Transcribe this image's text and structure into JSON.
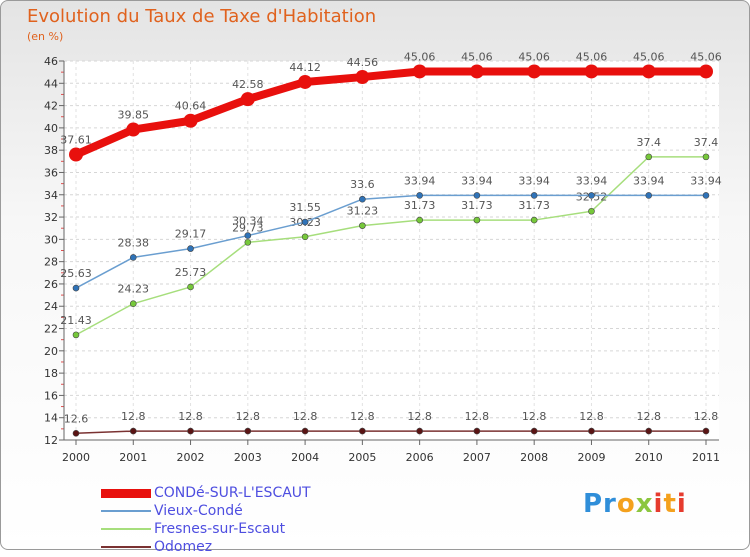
{
  "header": {
    "title": "Evolution du Taux de Taxe d'Habitation",
    "subtitle": "(en %)"
  },
  "logo": {
    "text": "Proxiti",
    "colors": [
      "#2f8ed9",
      "#f4a11d",
      "#8cc63f",
      "#e63b2e"
    ]
  },
  "chart_data": {
    "type": "line",
    "title": "Evolution du Taux de Taxe d'Habitation",
    "ylabel": "(en %)",
    "xlabel": "",
    "x": [
      "2000",
      "2001",
      "2002",
      "2003",
      "2004",
      "2005",
      "2006",
      "2007",
      "2008",
      "2009",
      "2010",
      "2011"
    ],
    "ylim": [
      12,
      46
    ],
    "yticks": [
      12,
      14,
      16,
      18,
      20,
      22,
      24,
      26,
      28,
      30,
      32,
      34,
      36,
      38,
      40,
      42,
      44,
      46
    ],
    "grid": true,
    "legend": "bottom-left",
    "series": [
      {
        "name": "CONDé-SUR-L'ESCAUT",
        "color": "#e8100d",
        "emphasis": true,
        "values": [
          37.61,
          39.85,
          40.64,
          42.58,
          44.12,
          44.56,
          45.06,
          45.06,
          45.06,
          45.06,
          45.06,
          45.06
        ],
        "labels": [
          "37.61",
          "39.85",
          "40.64",
          "42.58",
          "44.12",
          "44.56",
          "45.06",
          "45.06",
          "45.06",
          "45.06",
          "45.06",
          "45.06"
        ]
      },
      {
        "name": "Vieux-Condé",
        "color": "#6a9ed0",
        "point_color": "#2f73b8",
        "values": [
          25.63,
          28.38,
          29.17,
          30.34,
          31.55,
          33.6,
          33.94,
          33.94,
          33.94,
          33.94,
          33.94,
          33.94
        ],
        "labels": [
          "25.63",
          "28.38",
          "29.17",
          "30.34",
          "31.55",
          "33.6",
          "33.94",
          "33.94",
          "33.94",
          "33.94",
          "33.94",
          "33.94"
        ]
      },
      {
        "name": "Fresnes-sur-Escaut",
        "color": "#a6de7c",
        "point_color": "#76c83a",
        "values": [
          21.43,
          24.23,
          25.73,
          29.73,
          30.23,
          31.23,
          31.73,
          31.73,
          31.73,
          32.52,
          37.4,
          37.4
        ],
        "labels": [
          "21.43",
          "24.23",
          "25.73",
          "29.73",
          "30.23",
          "31.23",
          "31.73",
          "31.73",
          "31.73",
          "32.52",
          "37.4",
          "37.4"
        ]
      },
      {
        "name": "Odomez",
        "color": "#7a3232",
        "point_color": "#5a1414",
        "values": [
          12.6,
          12.8,
          12.8,
          12.8,
          12.8,
          12.8,
          12.8,
          12.8,
          12.8,
          12.8,
          12.8,
          12.8
        ],
        "labels": [
          "12.6",
          "12.8",
          "12.8",
          "12.8",
          "12.8",
          "12.8",
          "12.8",
          "12.8",
          "12.8",
          "12.8",
          "12.8",
          "12.8"
        ]
      }
    ]
  }
}
